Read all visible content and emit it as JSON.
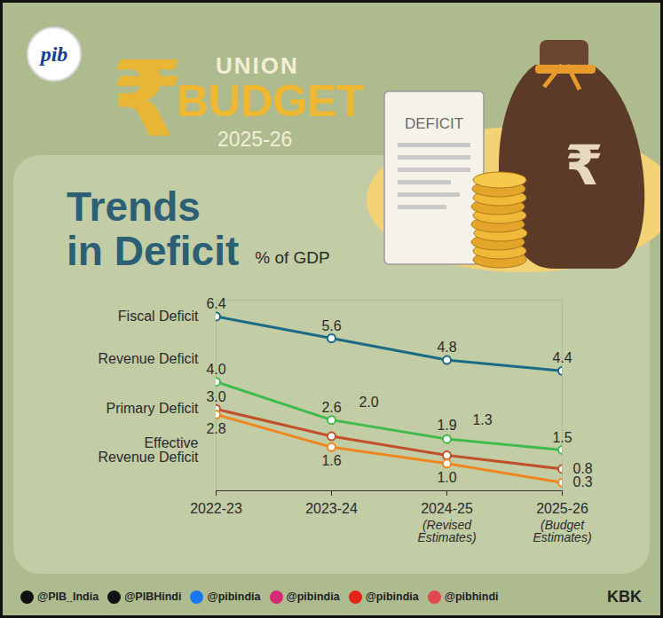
{
  "header": {
    "logo": "pib",
    "symbol": "₹",
    "line1": "UNION",
    "line2": "BUDGET",
    "line3": "2025-26",
    "icon_text": "DEFICIT",
    "bag_symbol": "₹"
  },
  "chart_data": {
    "type": "line",
    "title": "Trends in Deficit",
    "subtitle": "% of GDP",
    "categories": [
      "2022-23",
      "2023-24",
      "2024-25",
      "2025-26"
    ],
    "category_notes": [
      null,
      null,
      "(Revised Estimates)",
      "(Budget Estimates)"
    ],
    "ylim": [
      0,
      7
    ],
    "tick_labels": "x",
    "grid": false,
    "data_labels": true,
    "marker": "circle",
    "series": [
      {
        "name": "Fiscal Deficit",
        "color": "#1b6a86",
        "values": [
          6.4,
          5.6,
          4.8,
          4.4
        ],
        "value_labels": [
          "6.4",
          "5.6",
          "4.8",
          "4.4"
        ]
      },
      {
        "name": "Revenue Deficit",
        "color": "#3dbb4b",
        "values": [
          4.0,
          2.6,
          1.9,
          1.5
        ],
        "value_labels": [
          "4.0",
          "2.6",
          "1.9",
          "1.5"
        ]
      },
      {
        "name": "Primary Deficit",
        "color": "#c0512b",
        "values": [
          3.0,
          2.0,
          1.3,
          0.8
        ],
        "value_labels": [
          "3.0",
          "2.0",
          "1.3",
          "0.8"
        ]
      },
      {
        "name": "Effective Revenue Deficit",
        "color": "#f0861e",
        "values": [
          2.8,
          1.6,
          1.0,
          0.3
        ],
        "value_labels": [
          "2.8",
          "1.6",
          "1.0",
          "0.3"
        ]
      }
    ]
  },
  "footer": {
    "handles": [
      "@PIB_India",
      "@PIBHindi",
      "@pibindia",
      "@pibindia",
      "@pibindia",
      "@pibhindi"
    ],
    "credit": "KBK"
  }
}
